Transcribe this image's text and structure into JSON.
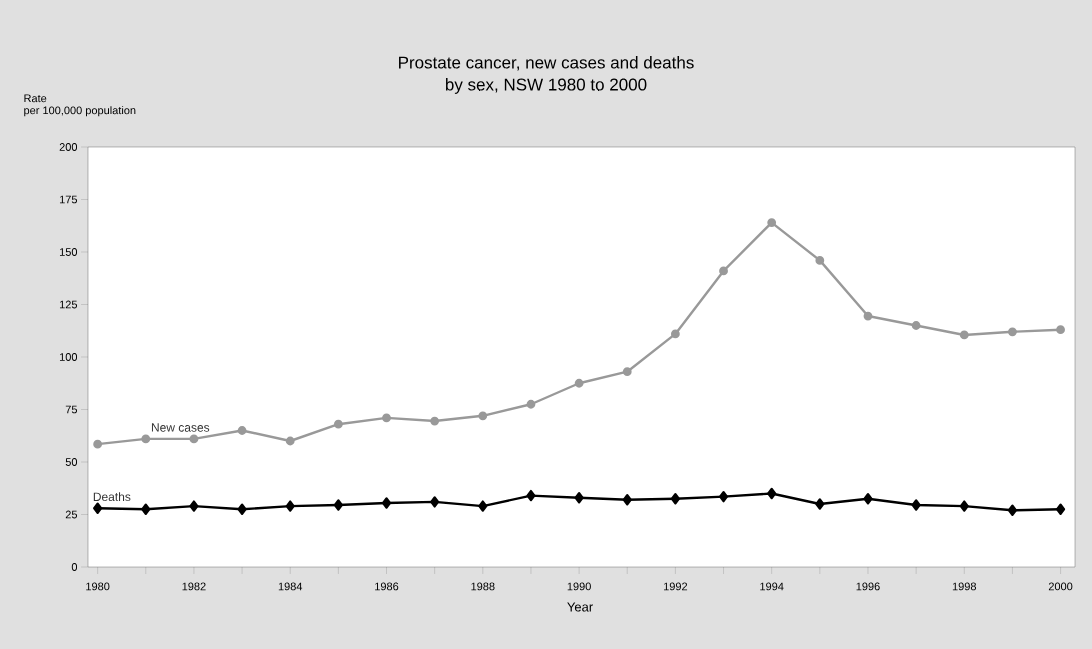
{
  "chart_data": {
    "type": "line",
    "title": "Prostate cancer, new cases and deaths\nby sex, NSW 1980 to 2000",
    "xlabel": "Year",
    "ylabel": "Rate\nper 100,000 population",
    "x": [
      1980,
      1981,
      1982,
      1983,
      1984,
      1985,
      1986,
      1987,
      1988,
      1989,
      1990,
      1991,
      1992,
      1993,
      1994,
      1995,
      1996,
      1997,
      1998,
      1999,
      2000
    ],
    "series": [
      {
        "name": "New cases",
        "color": "#999999",
        "marker": "circle",
        "values": [
          58.5,
          61,
          61,
          65,
          60,
          68,
          71,
          69.5,
          72,
          77.5,
          87.5,
          93,
          111,
          141,
          164,
          146,
          119.5,
          115,
          110.5,
          112,
          113
        ]
      },
      {
        "name": "Deaths",
        "color": "#000000",
        "marker": "diamond",
        "values": [
          28,
          27.5,
          29,
          27.5,
          29,
          29.5,
          30.5,
          31,
          29,
          34,
          33,
          32,
          32.5,
          33.5,
          35,
          30,
          32.5,
          29.5,
          29,
          27,
          27.5
        ]
      }
    ],
    "xlim": [
      1979.8,
      2000.3
    ],
    "ylim": [
      0,
      200
    ],
    "xticks": [
      1980,
      {
        "value": 1981,
        "label": null
      },
      1982,
      {
        "value": 1983,
        "label": null
      },
      1984,
      {
        "value": 1985,
        "label": null
      },
      1986,
      {
        "value": 1987,
        "label": null
      },
      1988,
      {
        "value": 1989,
        "label": null
      },
      1990,
      {
        "value": 1991,
        "label": null
      },
      1992,
      {
        "value": 1993,
        "label": null
      },
      1994,
      {
        "value": 1995,
        "label": null
      },
      1996,
      {
        "value": 1997,
        "label": null
      },
      1998,
      {
        "value": 1999,
        "label": null
      },
      2000
    ],
    "yticks": [
      0,
      25,
      50,
      75,
      100,
      125,
      150,
      175,
      200
    ],
    "legend": false,
    "grid": false
  }
}
